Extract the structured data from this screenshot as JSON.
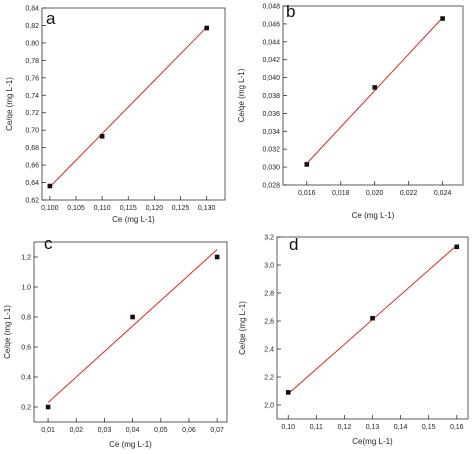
{
  "colors": {
    "fit_line": "#d9281f",
    "marker": "#111111",
    "axis": "#333333"
  },
  "chart_data": [
    {
      "type": "scatter",
      "panel_label": "a",
      "xlabel": "Ce (mg L-1)",
      "ylabel": "Ce/qe (mg L-1)",
      "xlim": [
        0.0985,
        0.1335
      ],
      "ylim": [
        0.62,
        0.84
      ],
      "xticks": [
        0.1,
        0.105,
        0.11,
        0.115,
        0.12,
        0.125,
        0.13
      ],
      "xtick_labels": [
        "0,100",
        "0,105",
        "0,110",
        "0,115",
        "0,120",
        "0,125",
        "0,130"
      ],
      "yticks": [
        0.62,
        0.64,
        0.66,
        0.68,
        0.7,
        0.72,
        0.74,
        0.76,
        0.78,
        0.8,
        0.82,
        0.84
      ],
      "ytick_labels": [
        "0,62",
        "0,64",
        "0,66",
        "0,68",
        "0,70",
        "0,72",
        "0,74",
        "0,76",
        "0,78",
        "0,80",
        "0,82",
        "0,84"
      ],
      "points": [
        {
          "x": 0.1,
          "y": 0.636
        },
        {
          "x": 0.11,
          "y": 0.693
        },
        {
          "x": 0.13,
          "y": 0.817
        }
      ],
      "fit_line": [
        {
          "x": 0.1,
          "y": 0.635
        },
        {
          "x": 0.13,
          "y": 0.818
        }
      ]
    },
    {
      "type": "scatter",
      "panel_label": "b",
      "xlabel": "Ce (mg L-1)",
      "ylabel": "Ce/qe (mg L-1)",
      "xlim": [
        0.0146,
        0.0252
      ],
      "ylim": [
        0.028,
        0.048
      ],
      "xticks": [
        0.016,
        0.018,
        0.02,
        0.022,
        0.024
      ],
      "xtick_labels": [
        "0,016",
        "0,018",
        "0,020",
        "0,022",
        "0,024"
      ],
      "yticks": [
        0.028,
        0.03,
        0.032,
        0.034,
        0.036,
        0.038,
        0.04,
        0.042,
        0.044,
        0.046,
        0.048
      ],
      "ytick_labels": [
        "0,028",
        "0,030",
        "0,032",
        "0,034",
        "0,036",
        "0,038",
        "0,040",
        "0,042",
        "0,044",
        "0,046",
        "0,048"
      ],
      "points": [
        {
          "x": 0.016,
          "y": 0.0303
        },
        {
          "x": 0.02,
          "y": 0.0389
        },
        {
          "x": 0.024,
          "y": 0.0466
        }
      ],
      "fit_line": [
        {
          "x": 0.016,
          "y": 0.0304
        },
        {
          "x": 0.024,
          "y": 0.0467
        }
      ]
    },
    {
      "type": "scatter",
      "panel_label": "c",
      "xlabel": "Ce (mg L-1)",
      "ylabel": "Ce/qe (mg L-1)",
      "xlim": [
        0.005,
        0.0735
      ],
      "ylim": [
        0.1,
        1.3
      ],
      "xticks": [
        0.01,
        0.02,
        0.03,
        0.04,
        0.05,
        0.06,
        0.07
      ],
      "xtick_labels": [
        "0,01",
        "0,02",
        "0,03",
        "0,04",
        "0,05",
        "0,06",
        "0,07"
      ],
      "yticks": [
        0.2,
        0.4,
        0.6,
        0.8,
        1.0,
        1.2
      ],
      "ytick_labels": [
        "0,2",
        "0,4",
        "0,6",
        "0,8",
        "1,0",
        "1,2"
      ],
      "points": [
        {
          "x": 0.01,
          "y": 0.2
        },
        {
          "x": 0.04,
          "y": 0.8
        },
        {
          "x": 0.07,
          "y": 1.2
        }
      ],
      "fit_line": [
        {
          "x": 0.01,
          "y": 0.23
        },
        {
          "x": 0.07,
          "y": 1.25
        }
      ]
    },
    {
      "type": "scatter",
      "panel_label": "d",
      "xlabel": "Ce(mg L-1)",
      "ylabel": "Ce/qe (mg L-1)",
      "xlim": [
        0.096,
        0.164
      ],
      "ylim": [
        1.9,
        3.2
      ],
      "xticks": [
        0.1,
        0.11,
        0.12,
        0.13,
        0.14,
        0.15,
        0.16
      ],
      "xtick_labels": [
        "0,10",
        "0,11",
        "0,12",
        "0,13",
        "0,14",
        "0,15",
        "0,16"
      ],
      "yticks": [
        2.0,
        2.2,
        2.4,
        2.6,
        2.8,
        3.0,
        3.2
      ],
      "ytick_labels": [
        "2,0",
        "2,2",
        "2,4",
        "2,6",
        "2,8",
        "3,0",
        "3,2"
      ],
      "points": [
        {
          "x": 0.1,
          "y": 2.09
        },
        {
          "x": 0.13,
          "y": 2.62
        },
        {
          "x": 0.16,
          "y": 3.13
        }
      ],
      "fit_line": [
        {
          "x": 0.1,
          "y": 2.08
        },
        {
          "x": 0.16,
          "y": 3.14
        }
      ]
    }
  ]
}
